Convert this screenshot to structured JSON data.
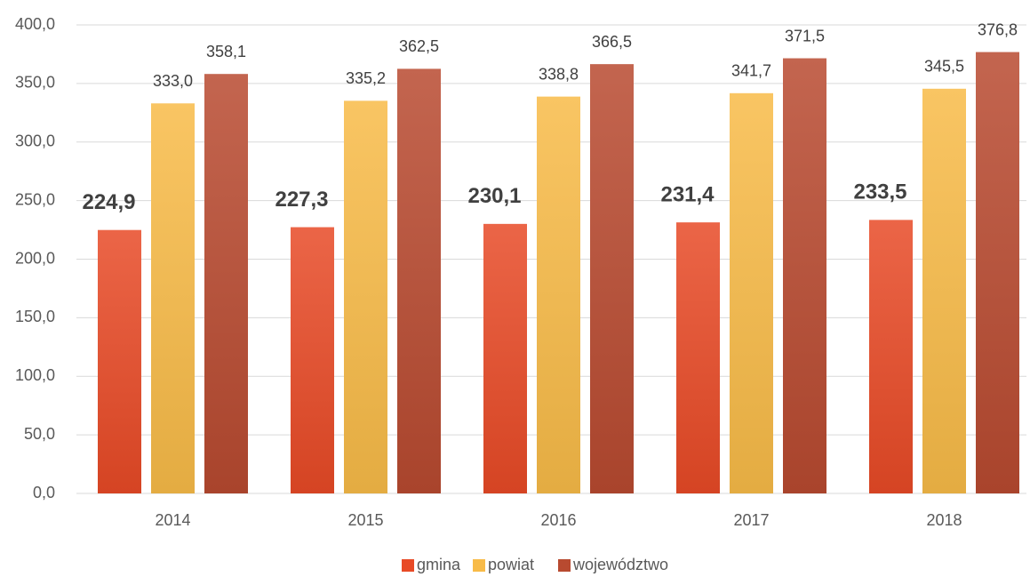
{
  "chart_data": {
    "type": "bar",
    "categories": [
      "2014",
      "2015",
      "2016",
      "2017",
      "2018"
    ],
    "series": [
      {
        "name": "gmina",
        "color": "#e84a26",
        "values": [
          224.9,
          227.3,
          230.1,
          231.4,
          233.5
        ],
        "value_labels": [
          "224,9",
          "227,3",
          "230,1",
          "231,4",
          "233,5"
        ]
      },
      {
        "name": "powiat",
        "color": "#f8bb48",
        "values": [
          333.0,
          335.2,
          338.8,
          341.7,
          345.5
        ],
        "value_labels": [
          "333,0",
          "335,2",
          "338,8",
          "341,7",
          "345,5"
        ]
      },
      {
        "name": "województwo",
        "color": "#b84a30",
        "values": [
          358.1,
          362.5,
          366.5,
          371.5,
          376.8
        ],
        "value_labels": [
          "358,1",
          "362,5",
          "366,5",
          "371,5",
          "376,8"
        ]
      }
    ],
    "ylim": [
      0,
      400
    ],
    "yticks": [
      {
        "value": 0,
        "label": "0,0"
      },
      {
        "value": 50,
        "label": "50,0"
      },
      {
        "value": 100,
        "label": "100,0"
      },
      {
        "value": 150,
        "label": "150,0"
      },
      {
        "value": 200,
        "label": "200,0"
      },
      {
        "value": 250,
        "label": "250,0"
      },
      {
        "value": 300,
        "label": "300,0"
      },
      {
        "value": 350,
        "label": "350,0"
      },
      {
        "value": 400,
        "label": "400,0"
      }
    ],
    "grid": true,
    "legend": "bottom"
  }
}
